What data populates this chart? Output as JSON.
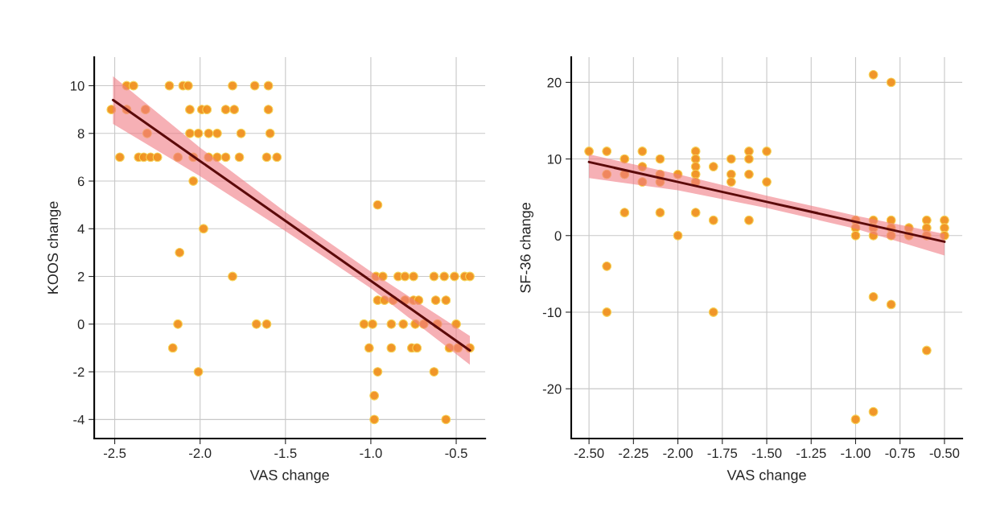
{
  "chart_data": [
    {
      "type": "scatter",
      "xlabel": "VAS change",
      "ylabel": "KOOS change",
      "xlim": [
        -2.62,
        -0.33
      ],
      "ylim": [
        -4.8,
        11.2
      ],
      "xticks": [
        -2.5,
        {
          "value": -2.0,
          "label": "-2.0"
        },
        -1.5,
        {
          "value": -1.0,
          "label": "-1.0"
        },
        -0.5
      ],
      "yticks": [
        -4,
        -2,
        0,
        2,
        4,
        6,
        8,
        10
      ],
      "grid": true,
      "legend": false,
      "series": [
        {
          "type": "scatter",
          "marker": "circle",
          "color": "#f0901e",
          "x": [
            -2.43,
            -2.39,
            -2.18,
            -2.1,
            -2.07,
            -1.81,
            -1.68,
            -1.6,
            -2.52,
            -2.43,
            -2.32,
            -2.06,
            -1.99,
            -1.96,
            -1.85,
            -1.8,
            -1.6,
            -2.31,
            -2.06,
            -2.01,
            -1.95,
            -1.9,
            -1.76,
            -1.59,
            -2.47,
            -2.36,
            -2.33,
            -2.29,
            -2.25,
            -2.13,
            -2.04,
            -1.95,
            -1.9,
            -1.85,
            -1.77,
            -1.61,
            -1.55,
            -2.04,
            -1.98,
            -2.12,
            -1.81,
            -2.13,
            -1.67,
            -1.61,
            -2.16,
            -2.01,
            -0.96,
            -0.97,
            -0.93,
            -0.84,
            -0.8,
            -0.75,
            -0.63,
            -0.57,
            -0.51,
            -0.45,
            -0.42,
            -0.96,
            -0.92,
            -0.87,
            -0.8,
            -0.75,
            -0.72,
            -0.62,
            -0.56,
            -1.04,
            -0.99,
            -0.88,
            -0.81,
            -0.74,
            -0.69,
            -0.61,
            -0.5,
            -1.01,
            -0.88,
            -0.76,
            -0.73,
            -0.54,
            -0.49,
            -0.42,
            -0.96,
            -0.63,
            -0.98,
            -0.98,
            -0.56
          ],
          "values": [
            10,
            10,
            10,
            10,
            10,
            10,
            10,
            10,
            9,
            9,
            9,
            9,
            9,
            9,
            9,
            9,
            9,
            8,
            8,
            8,
            8,
            8,
            8,
            8,
            7,
            7,
            7,
            7,
            7,
            7,
            7,
            7,
            7,
            7,
            7,
            7,
            7,
            6,
            4,
            3,
            2,
            0,
            0,
            0,
            -1,
            -2,
            5,
            2,
            2,
            2,
            2,
            2,
            2,
            2,
            2,
            2,
            2,
            1,
            1,
            1,
            1,
            1,
            1,
            1,
            1,
            0,
            0,
            0,
            0,
            0,
            0,
            0,
            0,
            -1,
            -1,
            -1,
            -1,
            -1,
            -1,
            -1,
            -2,
            -2,
            -3,
            -4,
            -4
          ]
        },
        {
          "type": "line",
          "color": "#5c0a0a",
          "line_style": "solid",
          "x": [
            -2.51,
            -2.0,
            -1.5,
            -1.0,
            -0.42
          ],
          "values": [
            9.4,
            6.84,
            4.33,
            1.82,
            -1.1
          ],
          "lower": [
            8.4,
            6.2,
            3.9,
            1.5,
            -1.7
          ],
          "upper": [
            10.4,
            7.4,
            4.7,
            2.2,
            -0.5
          ]
        }
      ]
    },
    {
      "type": "scatter",
      "xlabel": "VAS change",
      "ylabel": "SF-36 change",
      "xlim": [
        -2.6,
        -0.4
      ],
      "ylim": [
        -26.5,
        23.3
      ],
      "xticks": [
        {
          "value": -2.5,
          "label": "-2.50"
        },
        {
          "value": -2.25,
          "label": "-2.25"
        },
        {
          "value": -2.0,
          "label": "-2.00"
        },
        {
          "value": -1.75,
          "label": "-1.75"
        },
        {
          "value": -1.5,
          "label": "-1.50"
        },
        {
          "value": -1.25,
          "label": "-1.25"
        },
        {
          "value": -1.0,
          "label": "-1.00"
        },
        {
          "value": -0.75,
          "label": "-0.75"
        },
        {
          "value": -0.5,
          "label": "-0.50"
        }
      ],
      "yticks": [
        -20,
        -10,
        0,
        10,
        20
      ],
      "grid": true,
      "legend": false,
      "series": [
        {
          "type": "scatter",
          "marker": "circle",
          "color": "#f0901e",
          "x": [
            -2.5,
            -2.4,
            -2.4,
            -2.3,
            -2.3,
            -2.3,
            -2.2,
            -2.2,
            -2.2,
            -2.1,
            -2.1,
            -2.1,
            -2.1,
            -2.0,
            -2.0,
            -1.9,
            -1.9,
            -1.9,
            -1.9,
            -1.9,
            -1.9,
            -1.8,
            -1.8,
            -1.7,
            -1.7,
            -1.7,
            -1.6,
            -1.6,
            -1.6,
            -1.6,
            -1.5,
            -1.5,
            -0.9,
            -0.8,
            -1.0,
            -1.0,
            -1.0,
            -0.9,
            -0.9,
            -0.9,
            -0.8,
            -0.8,
            -0.8,
            -0.7,
            -0.7,
            -0.6,
            -0.6,
            -0.6,
            -0.5,
            -0.5,
            -0.5,
            -2.4,
            -2.4,
            -1.8,
            -0.9,
            -0.8,
            -0.6,
            -1.0,
            -0.9
          ],
          "values": [
            11,
            11,
            8,
            10,
            8,
            3,
            11,
            9,
            7,
            10,
            8,
            7,
            3,
            8,
            0,
            11,
            10,
            9,
            8,
            7,
            3,
            9,
            2,
            10,
            8,
            7,
            11,
            10,
            8,
            2,
            11,
            7,
            21,
            20,
            2,
            1,
            0,
            2,
            1,
            0,
            2,
            1,
            0,
            1,
            0,
            2,
            1,
            0,
            2,
            1,
            0,
            -4,
            -10,
            -10,
            -8,
            -9,
            -15,
            -24,
            -23
          ]
        },
        {
          "type": "line",
          "color": "#5c0a0a",
          "line_style": "solid",
          "x": [
            -2.5,
            -2.0,
            -1.5,
            -1.0,
            -0.5
          ],
          "values": [
            9.6,
            7.0,
            4.4,
            1.8,
            -0.8
          ],
          "lower": [
            7.5,
            5.9,
            3.6,
            0.9,
            -2.6
          ],
          "upper": [
            10.6,
            8.0,
            5.2,
            2.6,
            0.2
          ]
        }
      ]
    }
  ]
}
